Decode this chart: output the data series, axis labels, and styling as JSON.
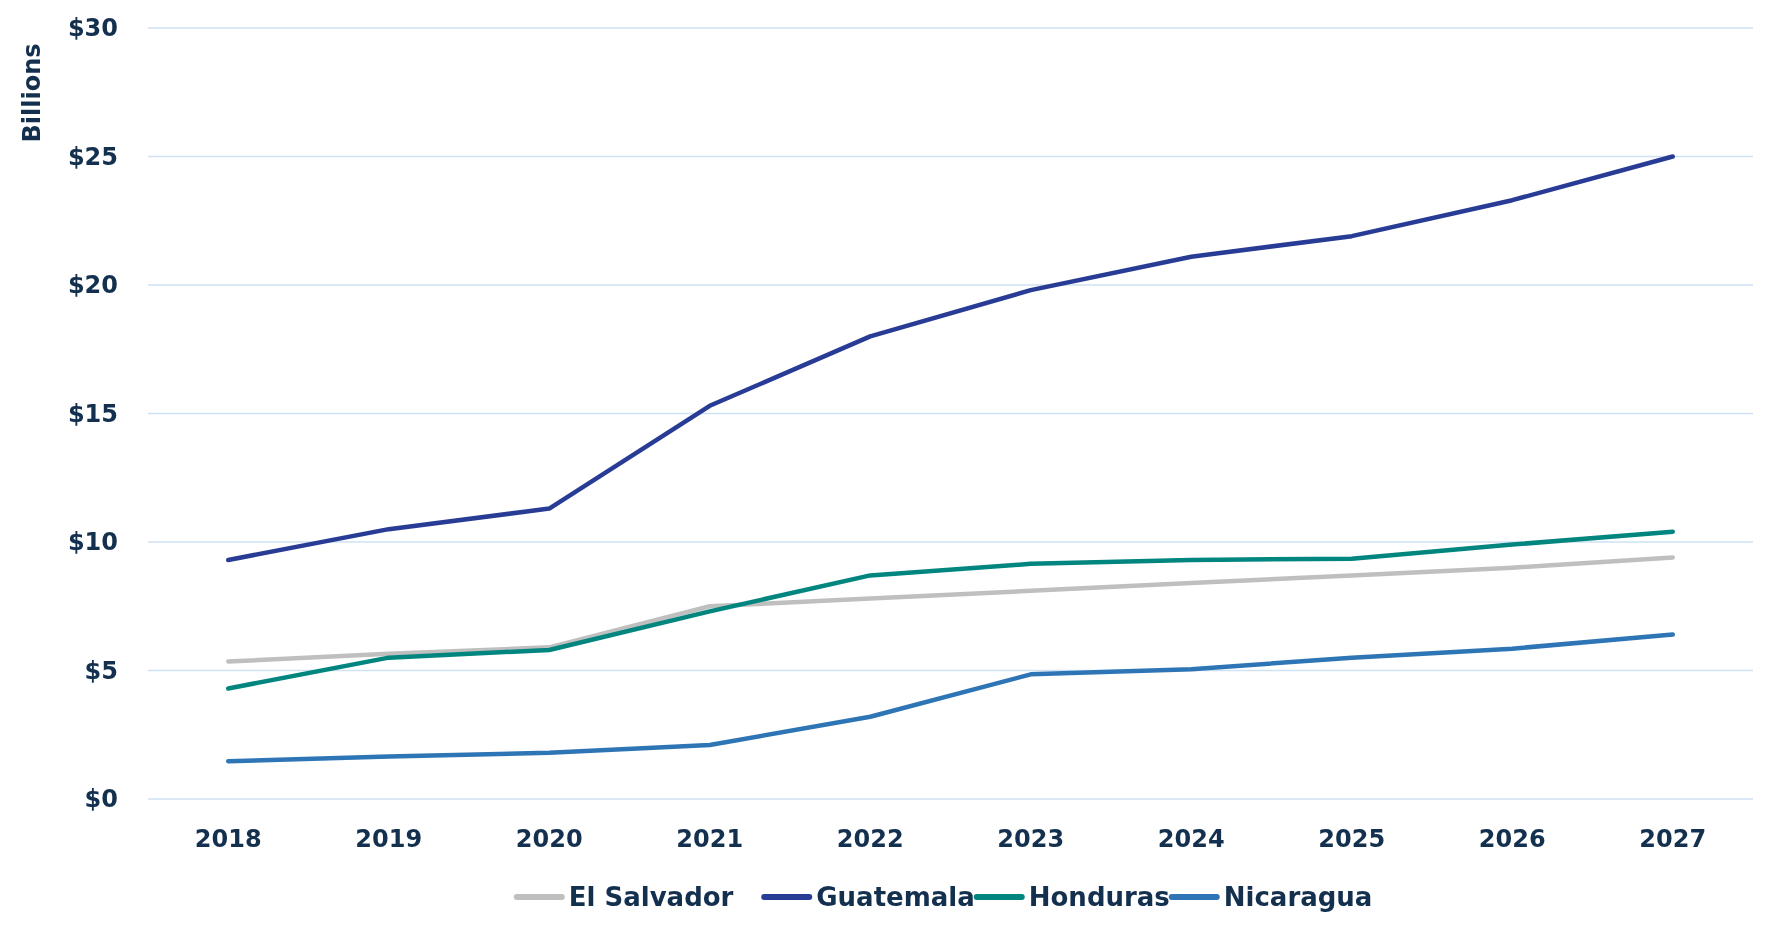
{
  "chart_data": {
    "type": "line",
    "ylabel": "Billions",
    "categories": [
      "2018",
      "2019",
      "2020",
      "2021",
      "2022",
      "2023",
      "2024",
      "2025",
      "2026",
      "2027"
    ],
    "series": [
      {
        "name": "El Salvador",
        "color": "#bfbfbf",
        "values": [
          5.35,
          5.65,
          5.9,
          7.5,
          7.8,
          8.1,
          8.4,
          8.7,
          9.0,
          9.4
        ]
      },
      {
        "name": "Guatemala",
        "color": "#283c96",
        "values": [
          9.3,
          10.5,
          11.3,
          15.3,
          18.0,
          19.8,
          21.1,
          21.9,
          23.3,
          25.0
        ]
      },
      {
        "name": "Honduras",
        "color": "#00857f",
        "values": [
          4.3,
          5.5,
          5.8,
          7.3,
          8.7,
          9.15,
          9.3,
          9.35,
          9.9,
          10.4
        ]
      },
      {
        "name": "Nicaragua",
        "color": "#2e75b6",
        "values": [
          1.47,
          1.65,
          1.8,
          2.1,
          3.2,
          4.85,
          5.05,
          5.5,
          5.85,
          6.4
        ]
      }
    ],
    "ylim": [
      0,
      30
    ],
    "yticks": [
      {
        "value": 0,
        "label": "$0"
      },
      {
        "value": 5,
        "label": "$5"
      },
      {
        "value": 10,
        "label": "$10"
      },
      {
        "value": 15,
        "label": "$15"
      },
      {
        "value": 20,
        "label": "$20"
      },
      {
        "value": 25,
        "label": "$25"
      },
      {
        "value": 30,
        "label": "$30"
      }
    ],
    "grid": "y",
    "legend": "bottom",
    "marker": "none",
    "line_style": "solid"
  }
}
